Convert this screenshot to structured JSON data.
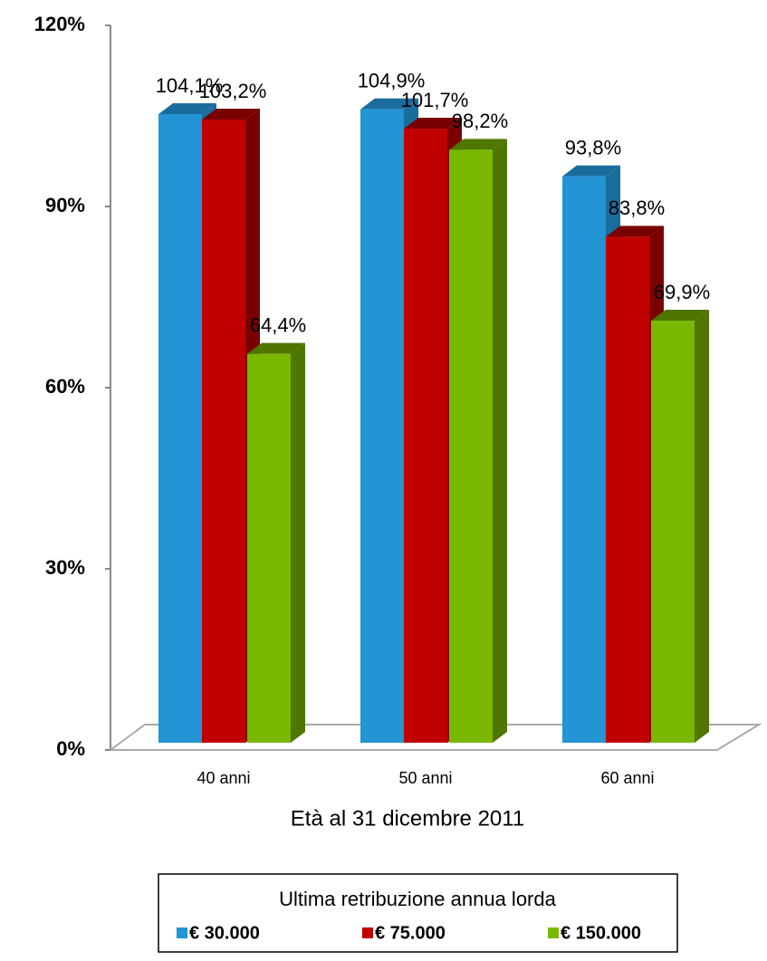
{
  "chart_data": {
    "type": "bar3d",
    "x_label": "Età al 31 dicembre 2011",
    "legend_title": "Ultima retribuzione annua lorda",
    "legend": "bottom",
    "categories": [
      "40 anni",
      "50 anni",
      "60 anni"
    ],
    "series": [
      {
        "name": "€ 30.000",
        "color": "#2394d4",
        "side": "#1a6c9c",
        "values": [
          104.1,
          104.9,
          93.8
        ],
        "value_labels": [
          "104,1%",
          "104,9%",
          "93,8%"
        ]
      },
      {
        "name": "€ 75.000",
        "color": "#c00000",
        "side": "#7a0000",
        "values": [
          103.2,
          101.7,
          83.8
        ],
        "value_labels": [
          "103,2%",
          "101,7%",
          "83,8%"
        ]
      },
      {
        "name": "€ 150.000",
        "color": "#7ab800",
        "side": "#4e7600",
        "values": [
          64.4,
          98.2,
          69.9
        ],
        "value_labels": [
          "64,4%",
          "98,2%",
          "69,9%"
        ]
      }
    ],
    "ylim": [
      0,
      120
    ],
    "yticks": [
      {
        "value": 0,
        "label": "0%"
      },
      {
        "value": 30,
        "label": "30%"
      },
      {
        "value": 60,
        "label": "60%"
      },
      {
        "value": 90,
        "label": "90%"
      },
      {
        "value": 120,
        "label": "120%"
      }
    ]
  }
}
